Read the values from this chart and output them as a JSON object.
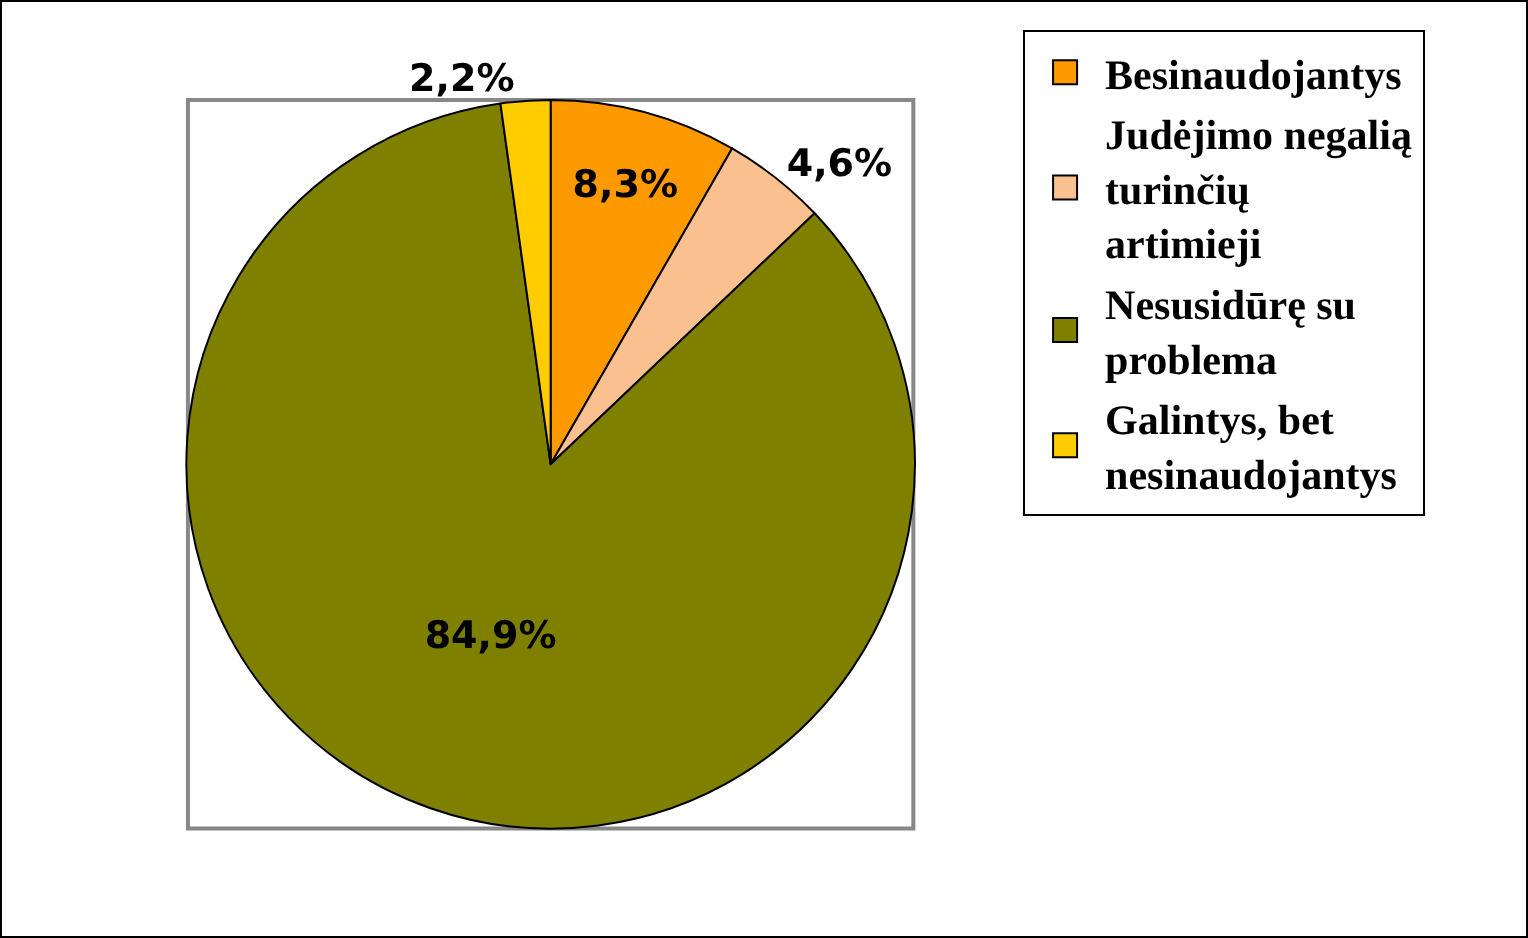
{
  "chart_data": {
    "type": "pie",
    "categories": [
      "Besinaudojantys",
      "Judėjimo negalią turinčių artimieji",
      "Nesusidūrę su problema",
      "Galintys, bet nesinaudojantys"
    ],
    "values": [
      8.3,
      4.6,
      84.9,
      2.2
    ],
    "colors": [
      "#ff9900",
      "#fac090",
      "#808000",
      "#ffcc00"
    ],
    "value_labels": [
      "8,3%",
      "4,6%",
      "84,9%",
      "2,2%"
    ],
    "legend": "right"
  }
}
